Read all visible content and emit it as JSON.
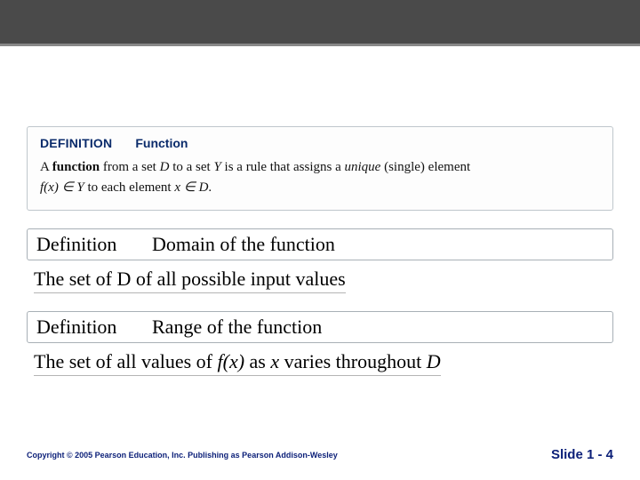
{
  "def_box": {
    "label": "DEFINITION",
    "title": "Function",
    "body_prefix": "A ",
    "body_bold": "function",
    "body_mid1": " from a set ",
    "body_setD": "D",
    "body_mid2": " to a set ",
    "body_setY": "Y",
    "body_mid3": " is a rule that assigns a ",
    "body_unique": "unique",
    "body_mid4": " (single) element ",
    "body_fx": "f(x) ∈ Y",
    "body_mid5": " to each element ",
    "body_xd": "x ∈ D",
    "body_end": "."
  },
  "row1": {
    "def": "Definition",
    "term": "Domain of the function"
  },
  "desc1": "The set of D of all possible input values",
  "row2": {
    "def": "Definition",
    "term": "Range of the function"
  },
  "desc2_prefix": "The set of all values of ",
  "desc2_fx": "f(x)",
  "desc2_mid": " as ",
  "desc2_x": "x",
  "desc2_mid2": " varies throughout ",
  "desc2_D": "D",
  "footer": {
    "copyright": "Copyright © 2005 Pearson Education, Inc.  Publishing as Pearson Addison-Wesley",
    "slide": "Slide 1 - 4"
  }
}
